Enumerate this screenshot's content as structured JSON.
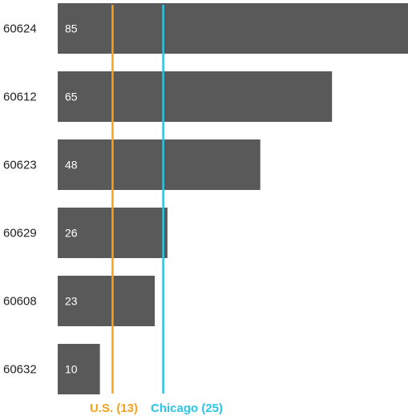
{
  "chart_data": {
    "type": "bar",
    "orientation": "horizontal",
    "categories": [
      "60624",
      "60612",
      "60623",
      "60629",
      "60608",
      "60632"
    ],
    "values": [
      85,
      65,
      48,
      26,
      23,
      10
    ],
    "bar_color": "#595959",
    "xlim": [
      0,
      83
    ],
    "reference_lines": [
      {
        "label": "U.S. (13)",
        "value": 13,
        "color": "#f7a21b"
      },
      {
        "label": "Chicago (25)",
        "value": 25,
        "color": "#29c6e8"
      }
    ],
    "data_labels": true,
    "grid": false
  }
}
